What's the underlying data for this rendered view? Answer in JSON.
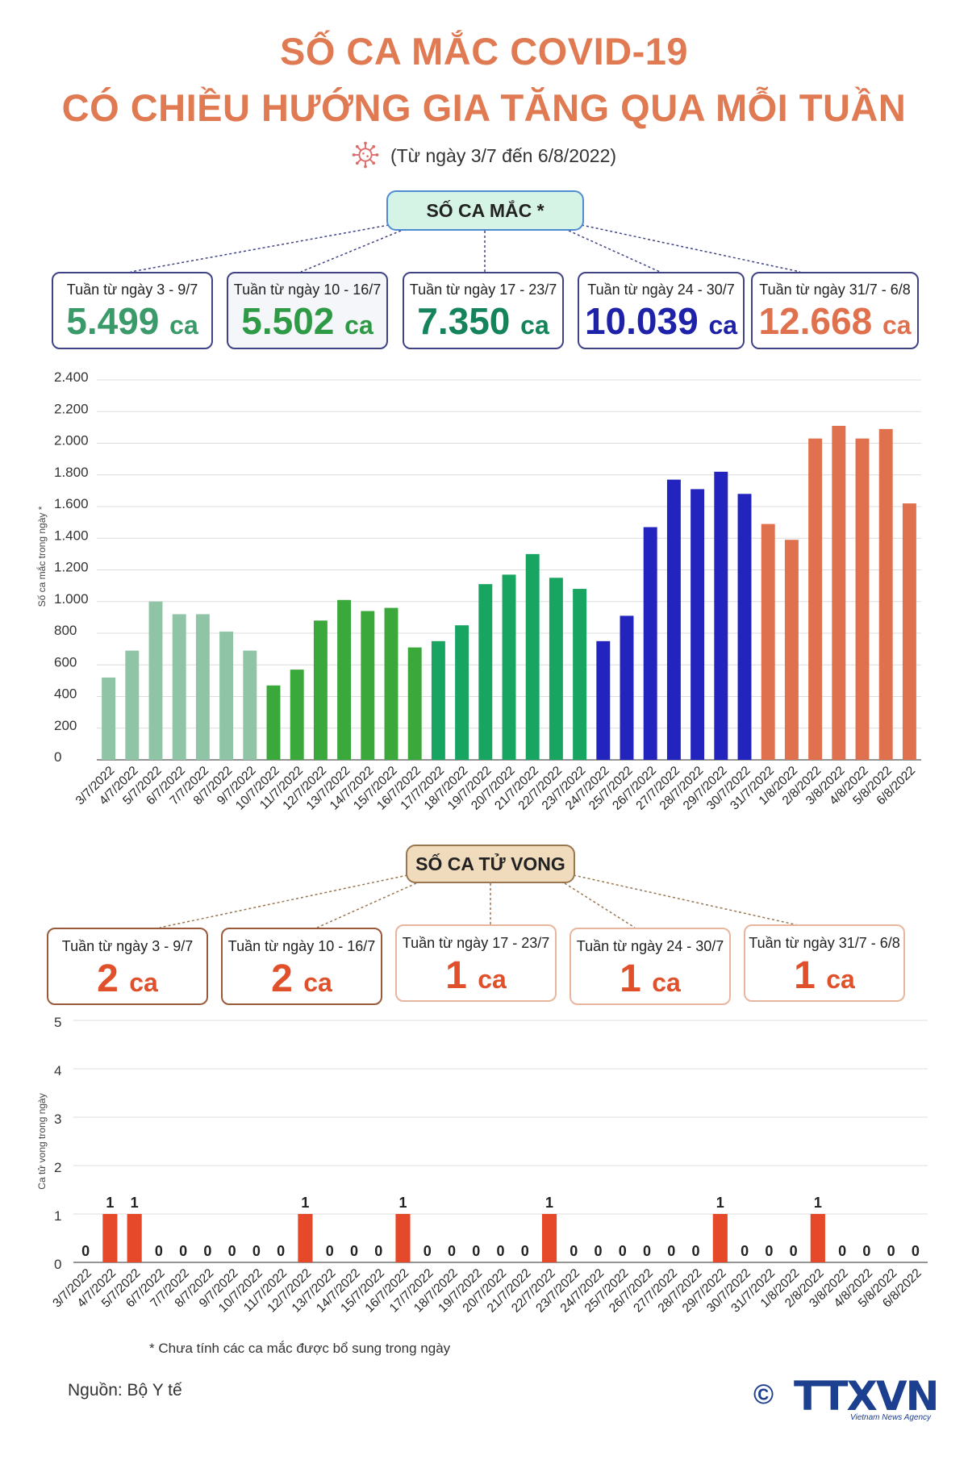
{
  "header": {
    "title_line1": "SỐ CA MẮC COVID-19",
    "title_line2": "CÓ CHIỀU HƯỚNG GIA TĂNG QUA MỖI TUẦN",
    "subtitle": "(Từ ngày 3/7 đến 6/8/2022)"
  },
  "cases_section": {
    "label": "SỐ CA MẮC *",
    "weeks": [
      {
        "label": "Tuần từ ngày 3 - 9/7",
        "number": "5.499",
        "unit": "ca",
        "color": "#3a9a6a"
      },
      {
        "label": "Tuần từ ngày 10 - 16/7",
        "number": "5.502",
        "unit": "ca",
        "color": "#2f9a45"
      },
      {
        "label": "Tuần từ ngày 17 - 23/7",
        "number": "7.350",
        "unit": "ca",
        "color": "#15845a"
      },
      {
        "label": "Tuần từ ngày 24 - 30/7",
        "number": "10.039",
        "unit": "ca",
        "color": "#1e22a8"
      },
      {
        "label": "Tuần từ ngày 31/7 - 6/8",
        "number": "12.668",
        "unit": "ca",
        "color": "#e0714e"
      }
    ]
  },
  "deaths_section": {
    "label": "SỐ CA TỬ VONG",
    "weeks": [
      {
        "label": "Tuần từ ngày 3 - 9/7",
        "number": "2",
        "unit": "ca"
      },
      {
        "label": "Tuần từ ngày 10 - 16/7",
        "number": "2",
        "unit": "ca"
      },
      {
        "label": "Tuần từ ngày 17 - 23/7",
        "number": "1",
        "unit": "ca"
      },
      {
        "label": "Tuần từ ngày 24 - 30/7",
        "number": "1",
        "unit": "ca"
      },
      {
        "label": "Tuần từ ngày 31/7 - 6/8",
        "number": "1",
        "unit": "ca"
      }
    ]
  },
  "chart_data": [
    {
      "type": "bar",
      "title": "",
      "xlabel": "",
      "ylabel": "Số ca mắc trong ngày *",
      "ylim": [
        0,
        2400
      ],
      "yticks": [
        0,
        200,
        400,
        600,
        800,
        1000,
        1200,
        1400,
        1600,
        1800,
        2000,
        2200,
        2400
      ],
      "ytick_labels": [
        "0",
        "200",
        "400",
        "600",
        "800",
        "1.000",
        "1.200",
        "1.400",
        "1.600",
        "1.800",
        "2.000",
        "2.200",
        "2.400"
      ],
      "grid": true,
      "categories": [
        "3/7/2022",
        "4/7/2022",
        "5/7/2022",
        "6/7/2022",
        "7/7/2022",
        "8/7/2022",
        "9/7/2022",
        "10/7/2022",
        "11/7/2022",
        "12/7/2022",
        "13/7/2022",
        "14/7/2022",
        "15/7/2022",
        "16/7/2022",
        "17/7/2022",
        "18/7/2022",
        "19/7/2022",
        "20/7/2022",
        "21/7/2022",
        "22/7/2022",
        "23/7/2022",
        "24/7/2022",
        "25/7/2022",
        "26/7/2022",
        "27/7/2022",
        "28/7/2022",
        "29/7/2022",
        "30/7/2022",
        "31/7/2022",
        "1/8/2022",
        "2/8/2022",
        "3/8/2022",
        "4/8/2022",
        "5/8/2022",
        "6/8/2022"
      ],
      "values": [
        520,
        690,
        1000,
        920,
        920,
        810,
        690,
        470,
        570,
        880,
        1010,
        940,
        960,
        710,
        750,
        850,
        1110,
        1170,
        1300,
        1150,
        1080,
        750,
        910,
        1470,
        1770,
        1710,
        1820,
        1680,
        1490,
        1390,
        2030,
        2110,
        2030,
        2090,
        1620
      ],
      "bar_colors": [
        "#8fc5a6",
        "#8fc5a6",
        "#8fc5a6",
        "#8fc5a6",
        "#8fc5a6",
        "#8fc5a6",
        "#8fc5a6",
        "#3aa83a",
        "#3aa83a",
        "#3aa83a",
        "#3aa83a",
        "#3aa83a",
        "#3aa83a",
        "#3aa83a",
        "#17a561",
        "#17a561",
        "#17a561",
        "#17a561",
        "#17a561",
        "#17a561",
        "#17a561",
        "#2323bd",
        "#2323bd",
        "#2323bd",
        "#2323bd",
        "#2323bd",
        "#2323bd",
        "#2323bd",
        "#e0714e",
        "#e0714e",
        "#e0714e",
        "#e0714e",
        "#e0714e",
        "#e0714e",
        "#e0714e"
      ]
    },
    {
      "type": "bar",
      "title": "",
      "xlabel": "",
      "ylabel": "Ca tử vong trong ngày",
      "ylim": [
        0,
        5
      ],
      "yticks": [
        0,
        1,
        2,
        3,
        4,
        5
      ],
      "ytick_labels": [
        "0",
        "1",
        "2",
        "3",
        "4",
        "5"
      ],
      "grid": true,
      "bar_color": "#e5492a",
      "categories": [
        "3/7/2022",
        "4/7/2022",
        "5/7/2022",
        "6/7/2022",
        "7/7/2022",
        "8/7/2022",
        "9/7/2022",
        "10/7/2022",
        "11/7/2022",
        "12/7/2022",
        "13/7/2022",
        "14/7/2022",
        "15/7/2022",
        "16/7/2022",
        "17/7/2022",
        "18/7/2022",
        "19/7/2022",
        "20/7/2022",
        "21/7/2022",
        "22/7/2022",
        "23/7/2022",
        "24/7/2022",
        "25/7/2022",
        "26/7/2022",
        "27/7/2022",
        "28/7/2022",
        "29/7/2022",
        "30/7/2022",
        "31/7/2022",
        "1/8/2022",
        "2/8/2022",
        "3/8/2022",
        "4/8/2022",
        "5/8/2022",
        "6/8/2022"
      ],
      "values": [
        0,
        1,
        1,
        0,
        0,
        0,
        0,
        0,
        0,
        1,
        0,
        0,
        0,
        1,
        0,
        0,
        0,
        0,
        0,
        1,
        0,
        0,
        0,
        0,
        0,
        0,
        1,
        0,
        0,
        0,
        1,
        0,
        0,
        0,
        0
      ],
      "data_labels": [
        "0",
        "1",
        "1",
        "0",
        "0",
        "0",
        "0",
        "0",
        "0",
        "1",
        "0",
        "0",
        "0",
        "1",
        "0",
        "0",
        "0",
        "0",
        "0",
        "1",
        "0",
        "0",
        "0",
        "0",
        "0",
        "0",
        "1",
        "0",
        "0",
        "0",
        "1",
        "0",
        "0",
        "0",
        "0"
      ]
    }
  ],
  "footnote": "* Chưa tính các ca mắc được bổ sung trong ngày",
  "source": "Nguồn: Bộ Y tế",
  "logo": {
    "copyright": "©",
    "text": "TTXVN",
    "subtext": "Vietnam News Agency"
  }
}
